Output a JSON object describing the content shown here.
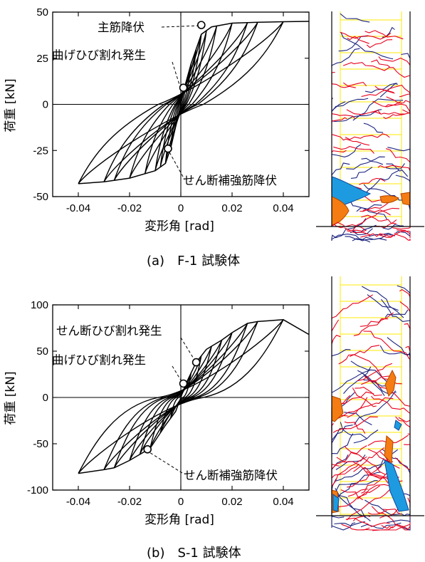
{
  "chart_data": [
    {
      "type": "line",
      "caption": "(a)　F-1 試験体",
      "xlabel": "変形角 [rad]",
      "ylabel": "荷重 [kN]",
      "xlim": [
        -0.05,
        0.05
      ],
      "ylim": [
        -50,
        50
      ],
      "xticks": [
        -0.04,
        -0.02,
        0,
        0.02,
        0.04
      ],
      "xtick_labels": [
        "-0.04",
        "-0.02",
        "0",
        "0.02",
        "0.04"
      ],
      "yticks": [
        -50,
        -25,
        0,
        25,
        50
      ],
      "ytick_labels": [
        "-50",
        "-25",
        "0",
        "25",
        "50"
      ],
      "grid": false,
      "series": [
        {
          "envelope_pos": [
            [
              0,
              0
            ],
            [
              0.002,
              12
            ],
            [
              0.004,
              22
            ],
            [
              0.006,
              30
            ],
            [
              0.008,
              38
            ],
            [
              0.012,
              42
            ],
            [
              0.02,
              44
            ],
            [
              0.03,
              44.5
            ],
            [
              0.04,
              44.8
            ],
            [
              0.05,
              45
            ]
          ],
          "envelope_neg": [
            [
              0,
              0
            ],
            [
              -0.002,
              -12
            ],
            [
              -0.004,
              -24
            ],
            [
              -0.006,
              -32
            ],
            [
              -0.01,
              -36
            ],
            [
              -0.02,
              -40
            ],
            [
              -0.03,
              -42
            ],
            [
              -0.04,
              -43
            ]
          ],
          "cycles_x": [
            0.002,
            0.004,
            0.006,
            0.008,
            0.01,
            0.014,
            0.02,
            0.026,
            0.03,
            0.04
          ],
          "cycles_neg_x": [
            -0.002,
            -0.004,
            -0.006,
            -0.008,
            -0.01,
            -0.014,
            -0.02,
            -0.026,
            -0.03,
            -0.04
          ],
          "pinch": 0.3
        }
      ],
      "annotations": [
        {
          "text": "主筋降伏",
          "x": 0.008,
          "y": 43
        },
        {
          "text": "曲げひび割れ発生",
          "x": 0.001,
          "y": 9
        },
        {
          "text": "せん断補強筋降伏",
          "x": -0.005,
          "y": -24
        }
      ]
    },
    {
      "type": "line",
      "caption": "(b)　S-1 試験体",
      "xlabel": "変形角 [rad]",
      "ylabel": "荷重 [kN]",
      "xlim": [
        -0.05,
        0.05
      ],
      "ylim": [
        -100,
        100
      ],
      "xticks": [
        -0.04,
        -0.02,
        0,
        0.02,
        0.04
      ],
      "xtick_labels": [
        "-0.04",
        "-0.02",
        "0",
        "0.02",
        "0.04"
      ],
      "yticks": [
        -100,
        -50,
        0,
        50,
        100
      ],
      "ytick_labels": [
        "-100",
        "-50",
        "0",
        "50",
        "100"
      ],
      "grid": false,
      "series": [
        {
          "envelope_pos": [
            [
              0,
              0
            ],
            [
              0.002,
              15
            ],
            [
              0.006,
              38
            ],
            [
              0.01,
              52
            ],
            [
              0.016,
              62
            ],
            [
              0.02,
              70
            ],
            [
              0.026,
              80
            ],
            [
              0.03,
              82
            ],
            [
              0.04,
              84
            ],
            [
              0.05,
              68
            ]
          ],
          "envelope_neg": [
            [
              0,
              0
            ],
            [
              -0.002,
              -15
            ],
            [
              -0.006,
              -30
            ],
            [
              -0.012,
              -55
            ],
            [
              -0.02,
              -68
            ],
            [
              -0.026,
              -76
            ],
            [
              -0.03,
              -78
            ],
            [
              -0.04,
              -82
            ]
          ],
          "cycles_x": [
            0.004,
            0.008,
            0.012,
            0.016,
            0.02,
            0.026,
            0.03,
            0.04
          ],
          "cycles_neg_x": [
            -0.004,
            -0.008,
            -0.012,
            -0.016,
            -0.02,
            -0.026,
            -0.03,
            -0.04
          ],
          "pinch": 0.12
        }
      ],
      "annotations": [
        {
          "text": "せん断ひび割れ発生",
          "x": 0.006,
          "y": 38
        },
        {
          "text": "曲げひび割れ発生",
          "x": 0.001,
          "y": 15
        },
        {
          "text": "せん断補強筋降伏",
          "x": -0.013,
          "y": -56
        }
      ]
    }
  ],
  "crack_panels": {
    "colors": {
      "flexural": "#e8001c",
      "shear": "#1a237e",
      "spall": "#f47c12",
      "spall2": "#1e9be0",
      "grid": "#ffe800"
    }
  }
}
